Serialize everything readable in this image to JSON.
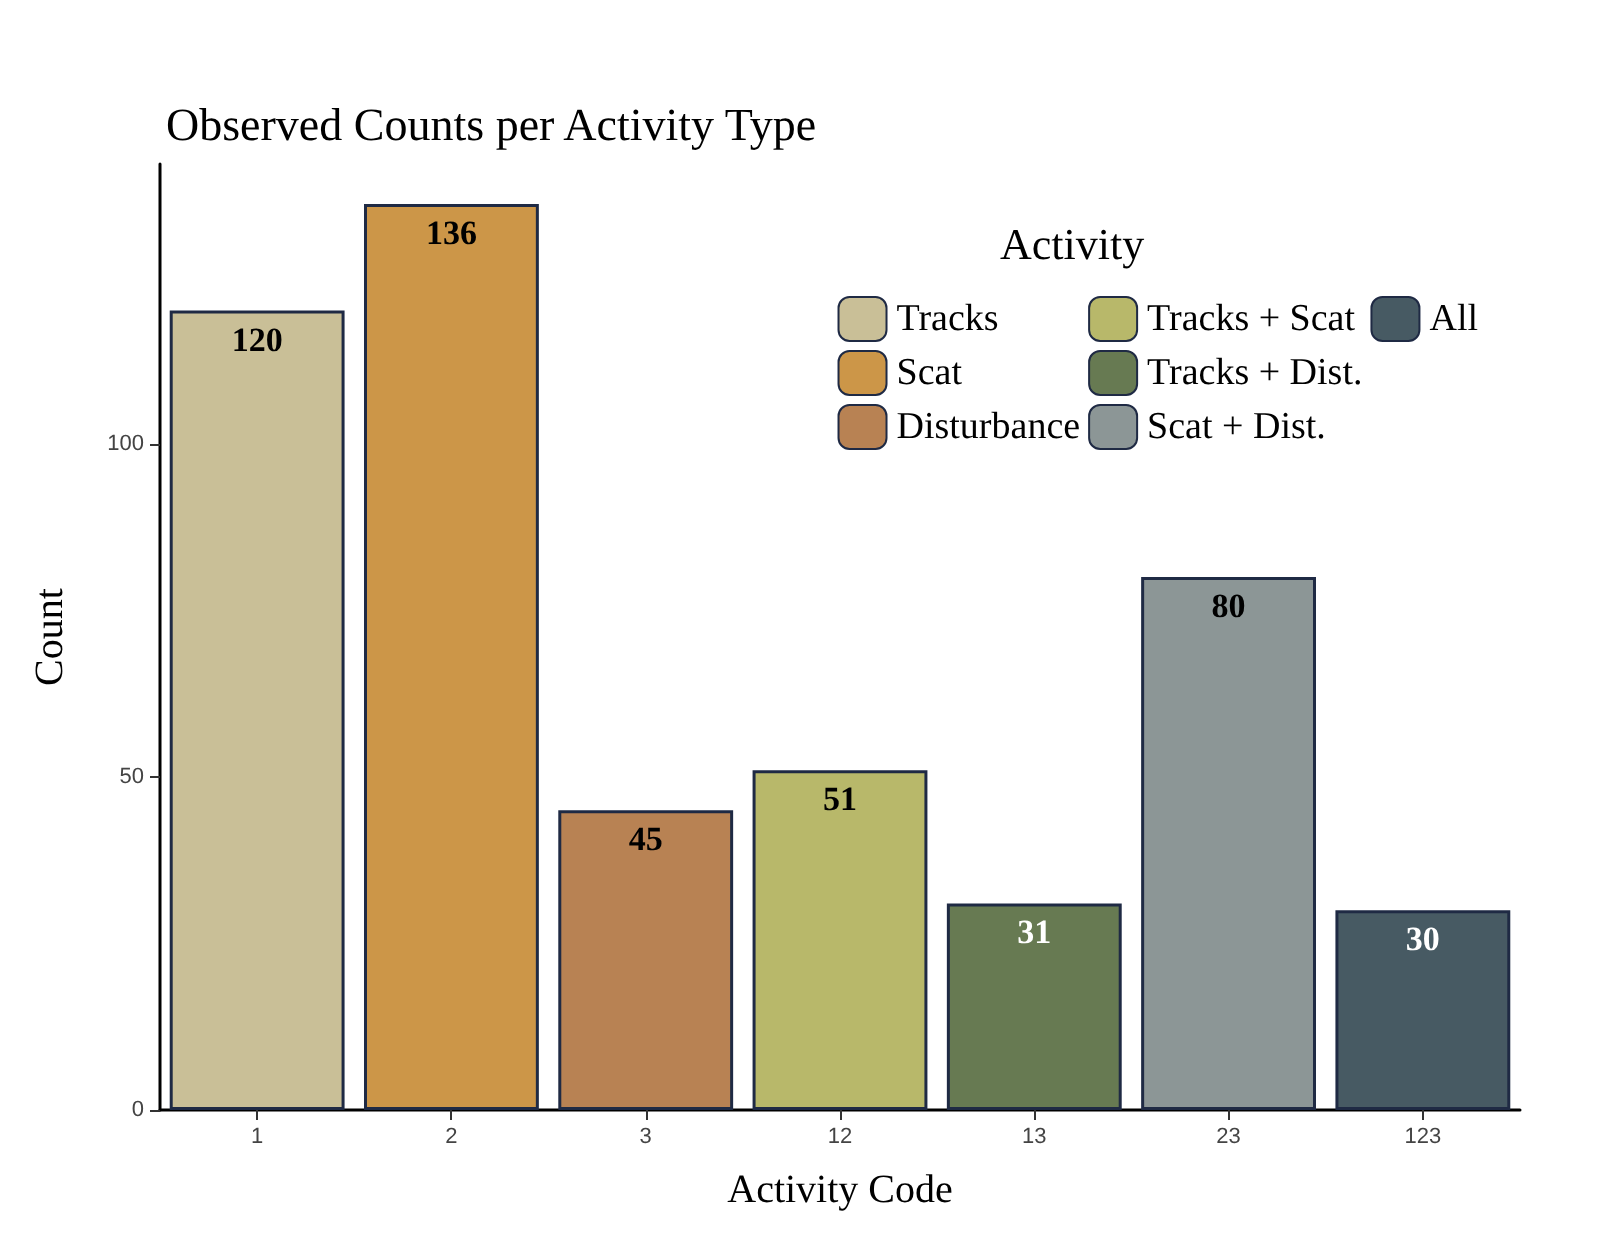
{
  "chart_data": {
    "type": "bar",
    "title": "Observed Counts per Activity Type",
    "xlabel": "Activity Code",
    "ylabel": "Count",
    "legend_title": "Activity",
    "categories": [
      "1",
      "2",
      "3",
      "12",
      "13",
      "23",
      "123"
    ],
    "series": [
      {
        "name": "Tracks",
        "color": "#c9bf97",
        "values": [
          120,
          null,
          null,
          null,
          null,
          null,
          null
        ]
      },
      {
        "name": "Scat",
        "color": "#cc9648",
        "values": [
          null,
          136,
          null,
          null,
          null,
          null,
          null
        ]
      },
      {
        "name": "Disturbance",
        "color": "#b88253",
        "values": [
          null,
          null,
          45,
          null,
          null,
          null,
          null
        ]
      },
      {
        "name": "Tracks + Scat",
        "color": "#b8b86a",
        "values": [
          null,
          null,
          null,
          51,
          null,
          null,
          null
        ]
      },
      {
        "name": "Tracks + Dist.",
        "color": "#677a52",
        "values": [
          null,
          null,
          null,
          null,
          31,
          null,
          null
        ]
      },
      {
        "name": "Scat + Dist.",
        "color": "#8c9696",
        "values": [
          null,
          null,
          null,
          null,
          null,
          80,
          null
        ]
      },
      {
        "name": "All",
        "color": "#475a63",
        "values": [
          null,
          null,
          null,
          null,
          null,
          null,
          30
        ]
      }
    ],
    "ylim": [
      0,
      142
    ],
    "yticks": [
      0,
      50,
      100
    ],
    "grid": false,
    "legend": "top right",
    "data_labels": true
  }
}
